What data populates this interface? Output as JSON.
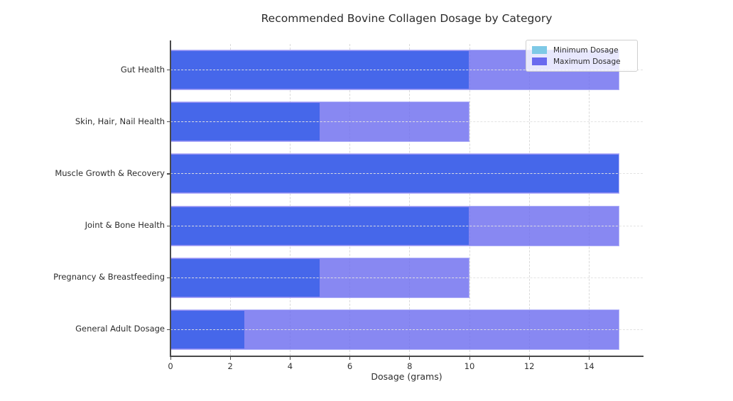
{
  "chart_data": {
    "type": "bar",
    "orientation": "horizontal",
    "title": "Recommended Bovine Collagen Dosage by Category",
    "xlabel": "Dosage (grams)",
    "categories": [
      "Gut Health",
      "Skin, Hair, Nail Health",
      "Muscle Growth & Recovery",
      "Joint & Bone Health",
      "Pregnancy & Breastfeeding",
      "General Adult Dosage"
    ],
    "series": [
      {
        "name": "Minimum Dosage",
        "values": [
          10,
          5,
          15,
          10,
          5,
          2.5
        ],
        "bar_color": "#4667EA",
        "legend_color": "#7EC9E6"
      },
      {
        "name": "Maximum Dosage",
        "values": [
          15,
          10,
          15,
          15,
          10,
          15
        ],
        "bar_color": "#6A6AEF",
        "bar_alpha": 0.8,
        "legend_color": "#6A6AEF"
      }
    ],
    "xlim": [
      0,
      15.8
    ],
    "xticks": [
      0,
      2,
      4,
      6,
      8,
      10,
      12,
      14
    ],
    "grid": true,
    "grid_style": "dashed",
    "legend_position": "upper right",
    "bar_edge_color": "#B2B2F8"
  }
}
